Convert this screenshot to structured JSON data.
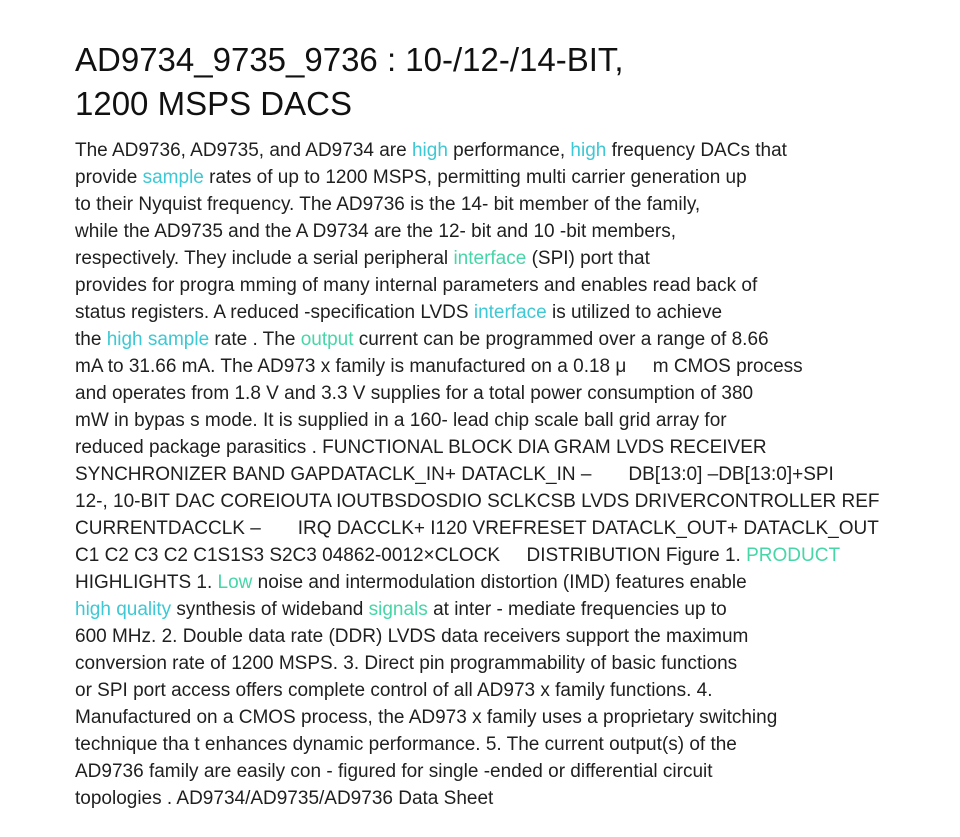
{
  "document": {
    "title_lines": [
      "AD9734_9735_9736 : 10-/12-/14-BIT,",
      "1200 MSPS DACS"
    ],
    "lines": [
      [
        {
          "t": "The AD9736, AD9735, and AD9734 are "
        },
        {
          "t": "high",
          "hl": "cyan"
        },
        {
          "t": " performance, "
        },
        {
          "t": "high",
          "hl": "cyan"
        },
        {
          "t": " frequency DACs that"
        }
      ],
      [
        {
          "t": "provide "
        },
        {
          "t": "sample",
          "hl": "cyan"
        },
        {
          "t": " rates of up to 1200 MSPS, permitting multi carrier generation up"
        }
      ],
      [
        {
          "t": "to their Nyquist frequency. The AD9736 is the 14- bit member of the family,"
        }
      ],
      [
        {
          "t": "while the AD9735 and the A D9734 are the 12- bit and 10 -bit members,"
        }
      ],
      [
        {
          "t": "respectively. They include a serial peripheral "
        },
        {
          "t": "interface",
          "hl": "green"
        },
        {
          "t": " (SPI) port that"
        }
      ],
      [
        {
          "t": "provides for progra mming of many internal parameters and enables read back of"
        }
      ],
      [
        {
          "t": "status registers. A reduced -specification LVDS "
        },
        {
          "t": "interface",
          "hl": "cyan"
        },
        {
          "t": " is utilized to achieve"
        }
      ],
      [
        {
          "t": "the "
        },
        {
          "t": "high sample",
          "hl": "cyan"
        },
        {
          "t": " rate . The "
        },
        {
          "t": "output",
          "hl": "green"
        },
        {
          "t": " current can be programmed over a range of 8.66"
        }
      ],
      [
        {
          "t": "mA to 31.66 mA. The AD973 x family is manufactured on a 0.18 μ     m CMOS process"
        }
      ],
      [
        {
          "t": "and operates from 1.8 V and 3.3 V supplies for a total power consumption of 380"
        }
      ],
      [
        {
          "t": "mW in bypas s mode. It is supplied in a 160- lead chip scale ball grid array for"
        }
      ],
      [
        {
          "t": "reduced package parasitics . FUNCTIONAL BLOCK DIA GRAM LVDS RECEIVER"
        }
      ],
      [
        {
          "t": "SYNCHRONIZER BAND GAPDATACLK_IN+ DATACLK_IN –       DB[13:0] –DB[13:0]+SPI"
        }
      ],
      [
        {
          "t": "12-, 10-BIT DAC COREIOUTA IOUTBSDOSDIO SCLKCSB LVDS DRIVERCONTROLLER REF"
        }
      ],
      [
        {
          "t": "CURRENTDACCLK –       IRQ DACCLK+ I120 VREFRESET DATACLK_OUT+ DATACLK_OUT"
        }
      ],
      [
        {
          "t": "C1 C2 C3 C2 C1S1S3 S2C3 04862-0012×CLOCK     DISTRIBUTION Figure 1. "
        },
        {
          "t": "PRODUCT",
          "hl": "green"
        }
      ],
      [
        {
          "t": "HIGHLIGHTS 1. "
        },
        {
          "t": "Low",
          "hl": "green"
        },
        {
          "t": " noise and intermodulation distortion (IMD) features enable"
        }
      ],
      [
        {
          "t": "high quality",
          "hl": "cyan"
        },
        {
          "t": " synthesis of wideband "
        },
        {
          "t": "signals",
          "hl": "green"
        },
        {
          "t": " at inter - mediate frequencies up to"
        }
      ],
      [
        {
          "t": "600 MHz. 2. Double data rate (DDR) LVDS data receivers support the maximum"
        }
      ],
      [
        {
          "t": "conversion rate of 1200 MSPS. 3. Direct pin programmability of basic functions"
        }
      ],
      [
        {
          "t": "or SPI port access offers complete control of all AD973 x family functions. 4."
        }
      ],
      [
        {
          "t": "Manufactured on a CMOS process, the AD973 x family uses a proprietary switching"
        }
      ],
      [
        {
          "t": "technique tha t enhances dynamic performance. 5. The current output(s) of the"
        }
      ],
      [
        {
          "t": "AD9736 family are easily con - figured for single -ended or differential circuit"
        }
      ],
      [
        {
          "t": "topologies . AD9734/AD9735/AD9736 Data Sheet"
        }
      ]
    ]
  },
  "colors": {
    "text": "#1f1f1f",
    "highlight_cyan": "#3cc8d4",
    "highlight_green": "#46d6a8",
    "background": "#ffffff"
  }
}
